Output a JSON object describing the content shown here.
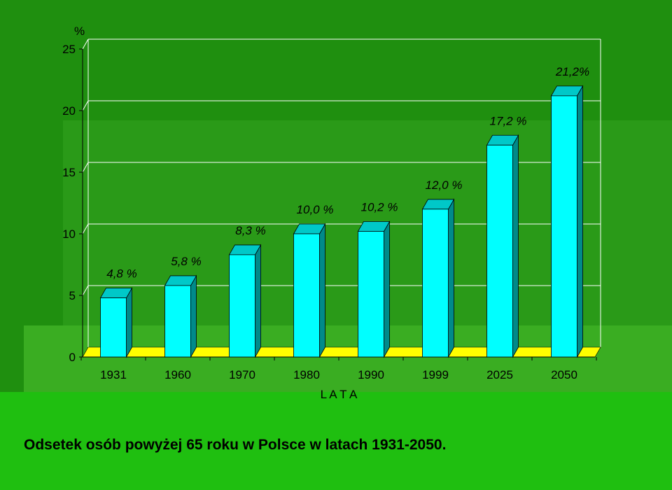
{
  "caption": "Odsetek osób powyżej 65 roku w Polsce w latach 1931-2050.",
  "colors": {
    "background": "#1f8f0f",
    "bar_front": "#00ffff",
    "bar_top": "#00c8c8",
    "bar_side": "#008a8a",
    "floor": "#ffff00",
    "gridline": "#ffffff"
  },
  "chart_data": {
    "type": "bar",
    "title": "",
    "xlabel": "L A T A",
    "ylabel": "%",
    "ylim": [
      0,
      25
    ],
    "yticks": [
      0,
      5,
      10,
      15,
      20,
      25
    ],
    "grid": true,
    "style": "3d",
    "categories": [
      "1931",
      "1960",
      "1970",
      "1980",
      "1990",
      "1999",
      "2025",
      "2050"
    ],
    "values": [
      4.8,
      5.8,
      8.3,
      10.0,
      10.2,
      12.0,
      17.2,
      21.2
    ],
    "data_labels": [
      "4,8 %",
      "5,8 %",
      "8,3 %",
      "10,0 %",
      "10,2 %",
      "12,0 %",
      "17,2 %",
      "21,2%"
    ]
  }
}
